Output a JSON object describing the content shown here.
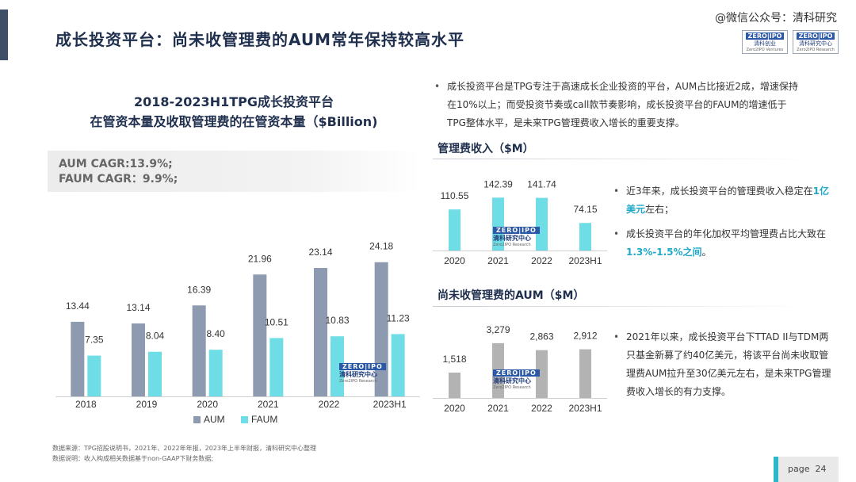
{
  "header": {
    "title": "成长投资平台：尚未收管理费的AUM常年保持较高水平",
    "watermark": "@微信公众号：清科研究",
    "logos": [
      {
        "l1": "ZERO|IPO",
        "l2": "清科创业",
        "l3": "Zero2IPO Ventures"
      },
      {
        "l1": "ZERO|IPO",
        "l2": "清科研究中心",
        "l3": "Zero2IPO Research"
      }
    ]
  },
  "main_chart_title": {
    "line1": "2018-2023H1TPG成长投资平台",
    "line2": "在管资本量及收取管理费的在管资本量（$Billion)"
  },
  "cagr": {
    "aum": "AUM CAGR:13.9%;",
    "faum": "FAUM CAGR：9.9%;"
  },
  "badge": {
    "z1": "ZERO|IPO",
    "z2": "清科研究中心",
    "z3": "Zero2IPO Research"
  },
  "colors": {
    "aum": "#8d9ab0",
    "faum": "#6fdde6",
    "unpaid": "#b3b3b3",
    "accent": "#2bb8c9",
    "title": "#1f2f4d"
  },
  "footnote": {
    "line1": "数据来源：TPG招股说明书，2021年、2022年年报，2023年上半年财报，清科研究中心整理",
    "line2": "数据说明：收入构成相关数据基于non-GAAP下财务数据;"
  },
  "bullets_top": [
    "成长投资平台是TPG专注于高速成长企业投资的平台，AUM占比接近2成，增速保持在10%以上；而受投资节奏或call款节奏影响，成长投资平台的FAUM的增速低于TPG整体水平，是未来TPG管理费收入增长的重要支撑。"
  ],
  "fee_section": {
    "title": "管理费收入（$M）",
    "bullets": [
      {
        "pre": "近3年来，成长投资平台的管理费收入稳定在",
        "hl": "1亿美元",
        "post": "左右；"
      },
      {
        "pre": "成长投资平台的年化加权平均管理费占比大致在",
        "hl": "1.3%-1.5%之间",
        "post": "。"
      }
    ]
  },
  "unpaid_section": {
    "title": "尚未收管理费的AUM（$M）",
    "bullets": [
      "2021年以来，成长投资平台下TTAD II与TDM两只基金新募了约40亿美元，将该平台尚未收取管理费AUM拉升至30亿美元左右，是未来TPG管理费收入增长的有力支撑。"
    ]
  },
  "page": {
    "label": "page",
    "number": "24"
  },
  "chart_data": [
    {
      "type": "bar",
      "title": "2018-2023H1TPG成长投资平台 在管资本量及收取管理费的在管资本量（$Billion)",
      "categories": [
        "2018",
        "2019",
        "2020",
        "2021",
        "2022",
        "2023H1"
      ],
      "series": [
        {
          "name": "AUM",
          "values": [
            13.44,
            13.14,
            16.39,
            21.96,
            23.14,
            24.18
          ],
          "labels": [
            "13.44",
            "13.14",
            "16.39",
            "21.96",
            "23.14",
            "24.18"
          ]
        },
        {
          "name": "FAUM",
          "values": [
            7.35,
            8.04,
            8.4,
            10.51,
            10.83,
            11.23
          ],
          "labels": [
            "7.35",
            "8.04",
            "8.40",
            "10.51",
            "10.83",
            "11.23"
          ]
        }
      ],
      "ylim": [
        0,
        30
      ],
      "legend": "bottom"
    },
    {
      "type": "bar",
      "title": "管理费收入（$M）",
      "categories": [
        "2020",
        "2021",
        "2022",
        "2023H1"
      ],
      "values": [
        110.55,
        142.39,
        141.74,
        74.15
      ],
      "labels": [
        "110.55",
        "142.39",
        "141.74",
        "74.15"
      ],
      "ylim": [
        0,
        160
      ]
    },
    {
      "type": "bar",
      "title": "尚未收管理费的AUM（$M）",
      "categories": [
        "2020",
        "2021",
        "2022",
        "2023H1"
      ],
      "values": [
        1518,
        3279,
        2863,
        2912
      ],
      "labels": [
        "1,518",
        "3,279",
        "2,863",
        "2,912"
      ],
      "ylim": [
        0,
        3700
      ]
    }
  ]
}
